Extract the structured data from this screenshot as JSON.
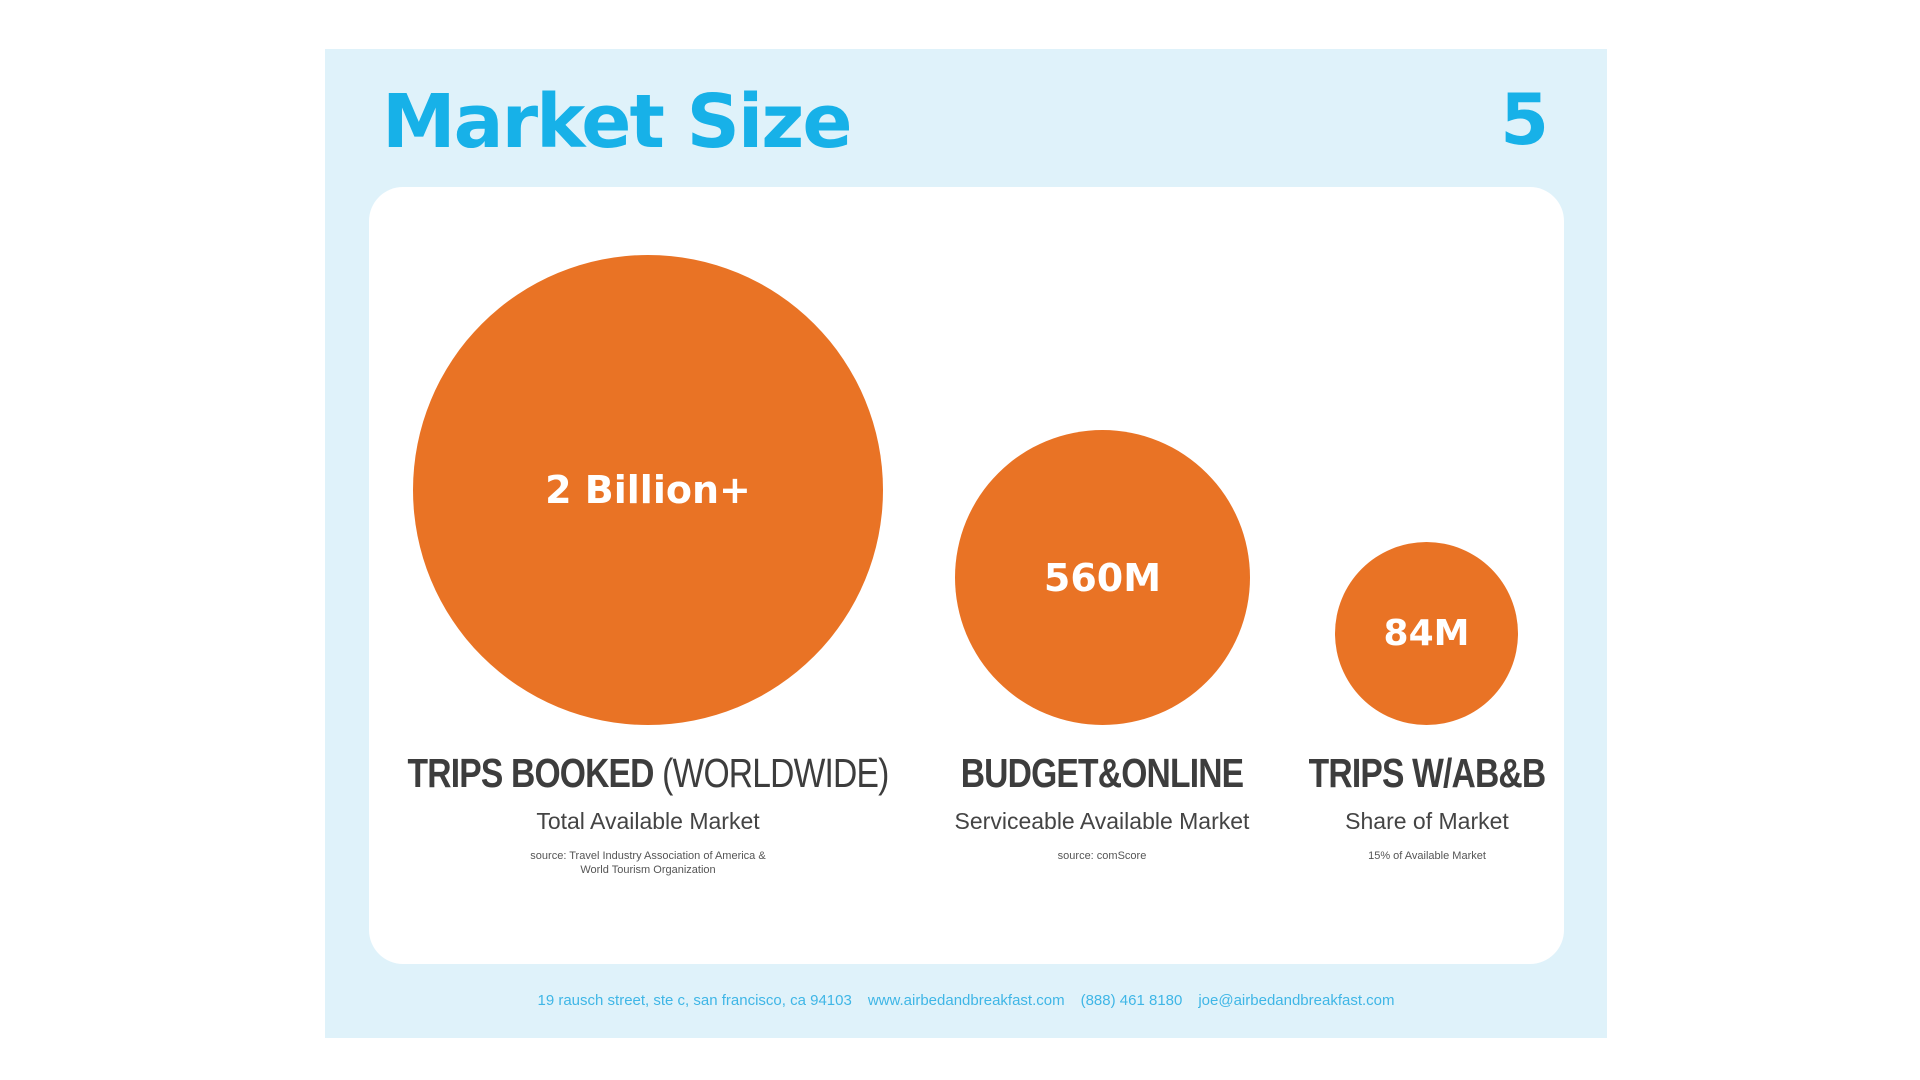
{
  "slide": {
    "title": "Market Size",
    "page_number": "5"
  },
  "markets": [
    {
      "value": "2 Billion+",
      "heading_bold": "TRIPS BOOKED",
      "heading_light": " (WORLDWIDE)",
      "subheading": "Total Available Market",
      "source_line1": "source: Travel Industry Association of America &",
      "source_line2": "World Tourism Organization"
    },
    {
      "value": "560M",
      "heading_bold": "BUDGET&ONLINE",
      "heading_light": "",
      "subheading": "Serviceable Available Market",
      "source_line1": "source: comScore",
      "source_line2": ""
    },
    {
      "value": "84M",
      "heading_bold": "TRIPS W/AB&B",
      "heading_light": "",
      "subheading": "Share of Market",
      "source_line1": "15% of Available Market",
      "source_line2": ""
    }
  ],
  "footer": {
    "address": "19 rausch street, ste c, san francisco, ca 94103",
    "website": "www.airbedandbreakfast.com",
    "phone": "(888) 461 8180",
    "email": "joe@airbedandbreakfast.com"
  },
  "colors": {
    "accent": "#17b1e8",
    "circle": "#e97325",
    "slide_background": "#dff2fa"
  }
}
